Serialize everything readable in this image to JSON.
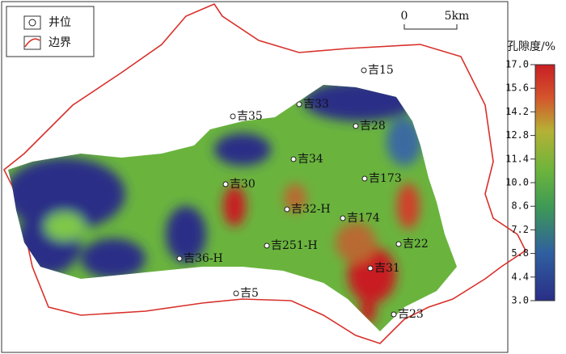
{
  "legend": {
    "items": [
      "井位",
      "边界"
    ]
  },
  "scale_bar": {
    "start": "0",
    "end": "5km"
  },
  "colorbar": {
    "title": "孔隙度/%",
    "ticks": [
      {
        "value": 17,
        "label": "17.0"
      },
      {
        "value": 15.6,
        "label": "15.6"
      },
      {
        "value": 14.2,
        "label": "14.2"
      },
      {
        "value": 12.8,
        "label": "12.8"
      },
      {
        "value": 11.4,
        "label": "11.4"
      },
      {
        "value": 10,
        "label": "10.0"
      },
      {
        "value": 8.6,
        "label": "8.6"
      },
      {
        "value": 7.2,
        "label": "7.2"
      },
      {
        "value": 5.8,
        "label": "5.8"
      },
      {
        "value": 4.4,
        "label": "4.4"
      },
      {
        "value": 3,
        "label": "3.0"
      }
    ]
  },
  "wells": [
    "吉15",
    "吉33",
    "吉35",
    "吉28",
    "吉34",
    "吉173",
    "吉30",
    "吉32-H",
    "吉174",
    "吉22",
    "吉251-H",
    "吉36-H",
    "吉31",
    "吉5",
    "吉23"
  ]
}
